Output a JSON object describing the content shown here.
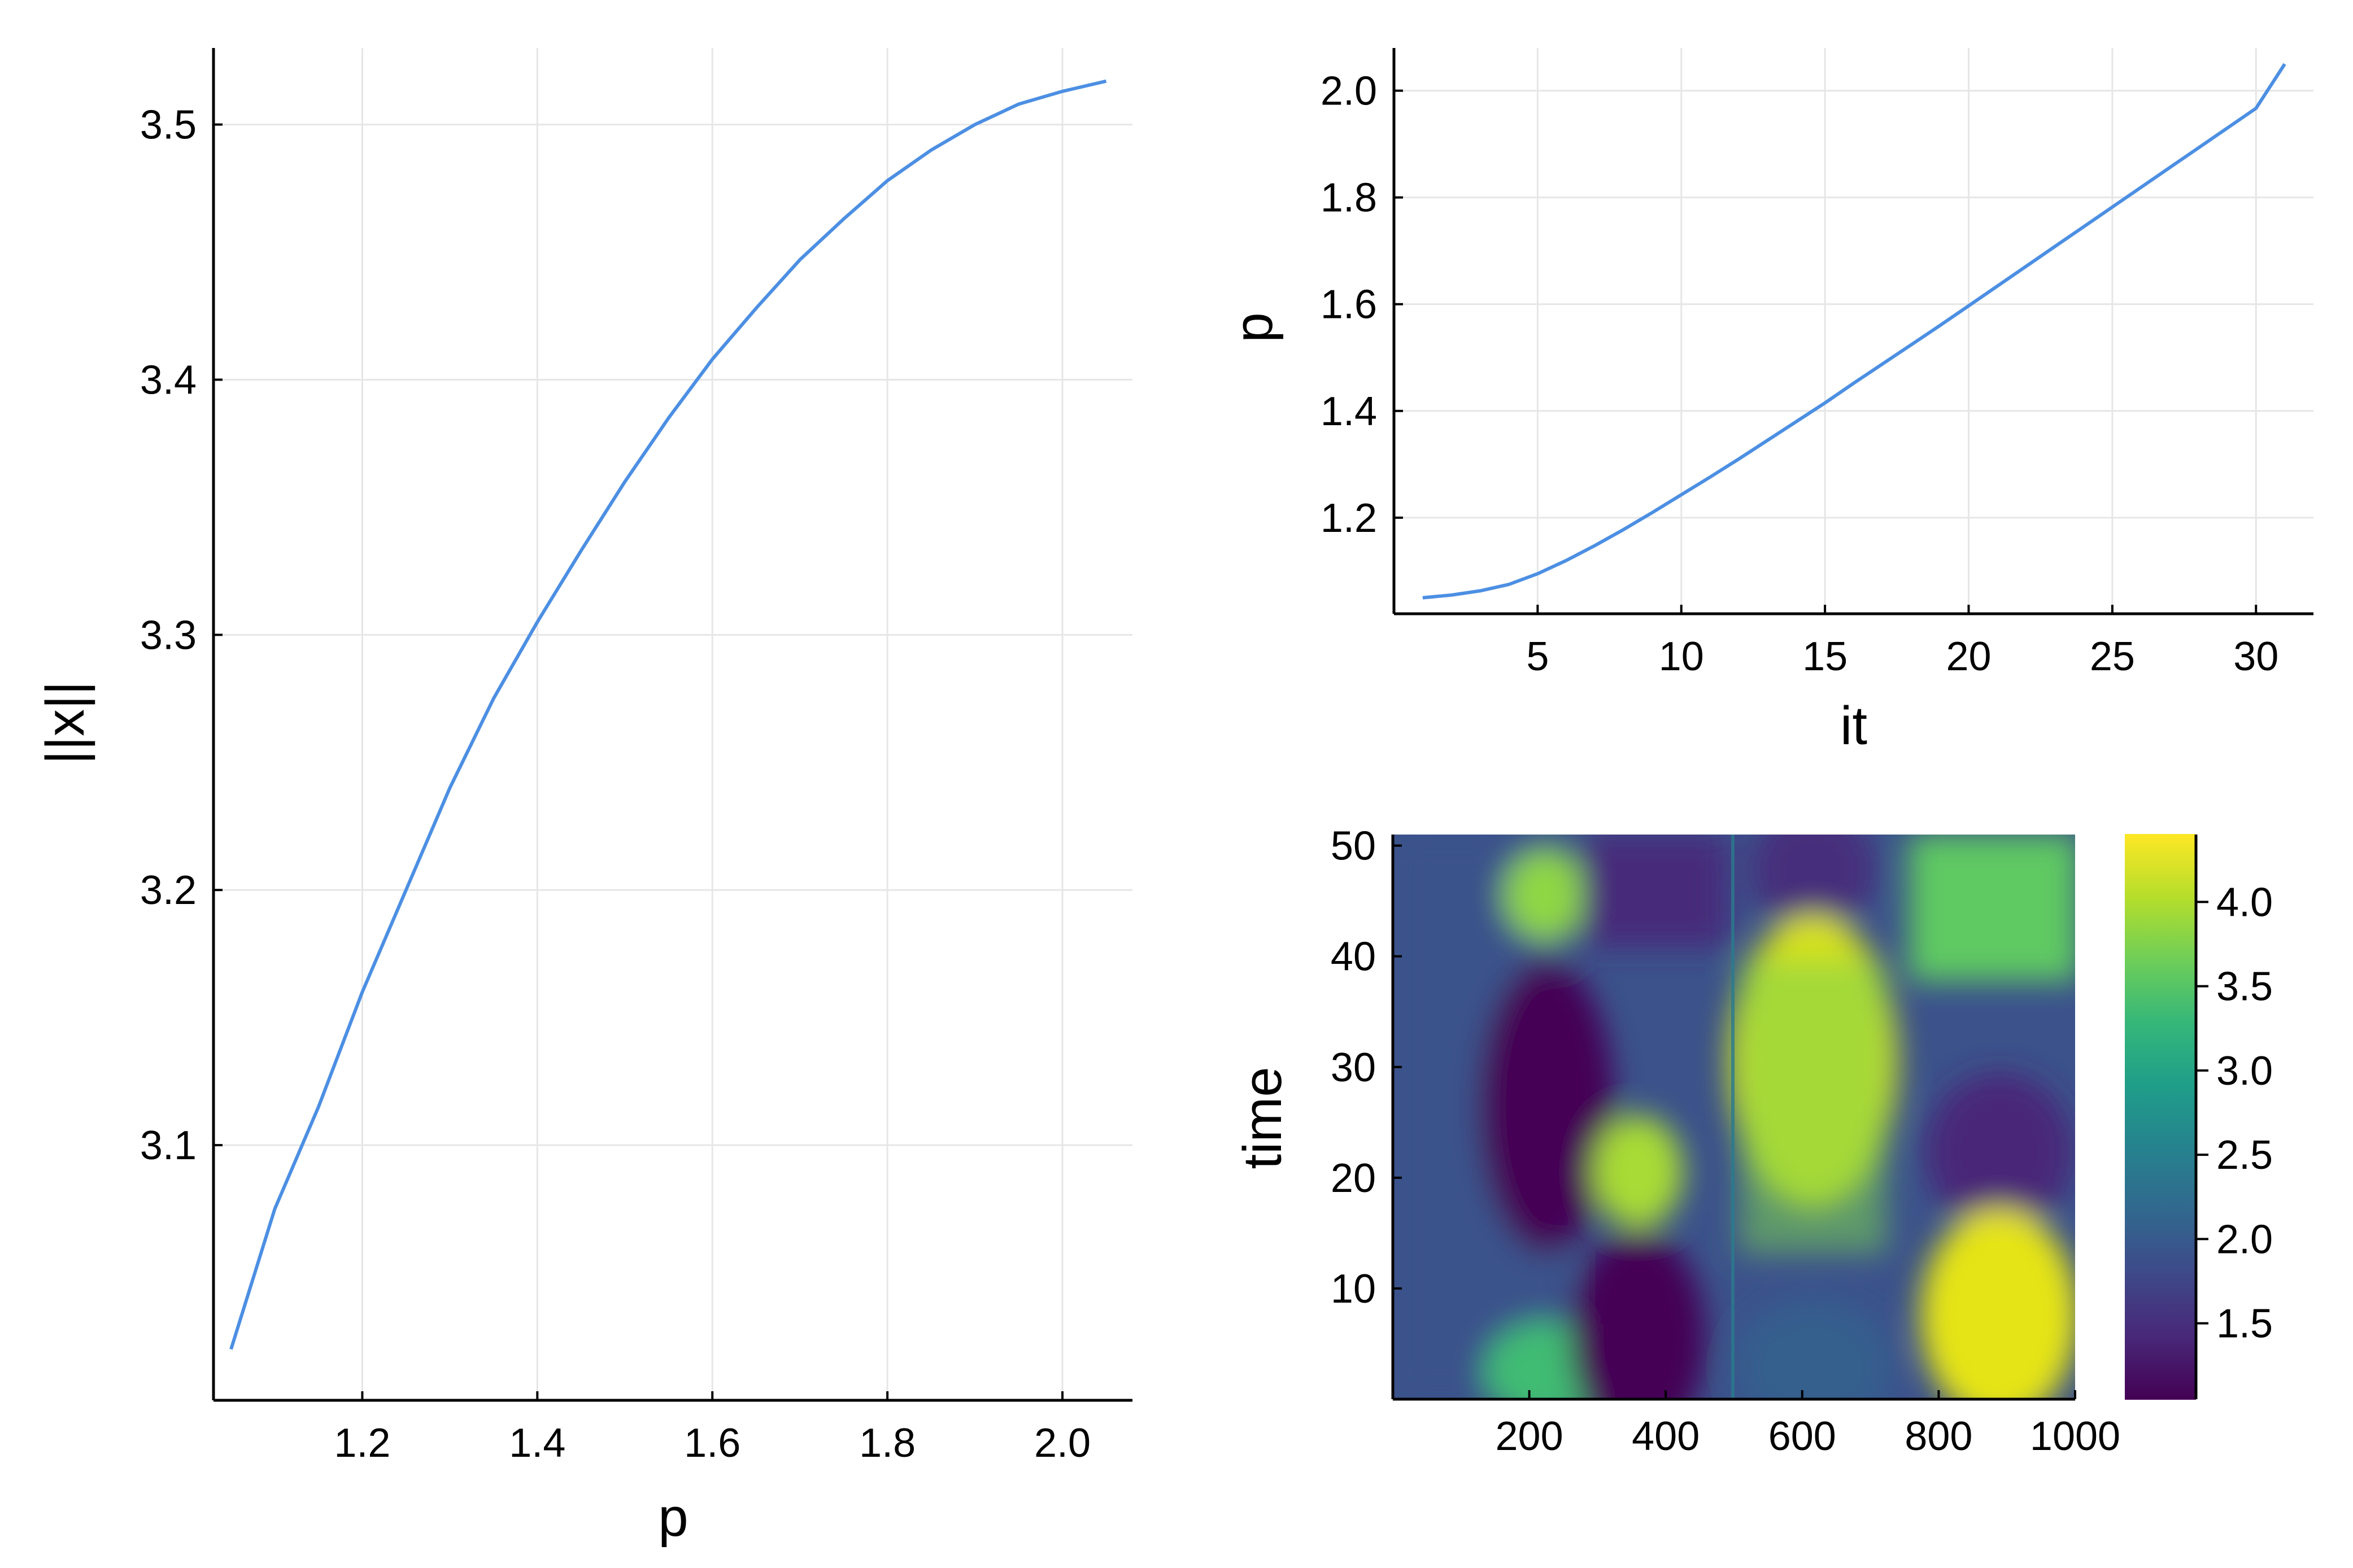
{
  "chart_data": [
    {
      "id": "norm-vs-p",
      "type": "line",
      "title": "",
      "xlabel": "p",
      "ylabel": "||x||",
      "xlim": [
        1.03,
        2.08
      ],
      "ylim": [
        3.0,
        3.53
      ],
      "xticks": [
        1.2,
        1.4,
        1.6,
        1.8,
        2.0
      ],
      "xtick_labels": [
        "1.2",
        "1.4",
        "1.6",
        "1.8",
        "2.0"
      ],
      "yticks": [
        3.1,
        3.2,
        3.3,
        3.4,
        3.5
      ],
      "ytick_labels": [
        "3.1",
        "3.2",
        "3.3",
        "3.4",
        "3.5"
      ],
      "grid": true,
      "legend": "none",
      "color": "#4c8fe3",
      "x": [
        1.05,
        1.1,
        1.15,
        1.2,
        1.25,
        1.3,
        1.35,
        1.4,
        1.45,
        1.5,
        1.55,
        1.6,
        1.65,
        1.7,
        1.75,
        1.8,
        1.85,
        1.9,
        1.95,
        2.0,
        2.05
      ],
      "y": [
        3.02,
        3.075,
        3.115,
        3.16,
        3.2,
        3.24,
        3.275,
        3.305,
        3.333,
        3.36,
        3.385,
        3.408,
        3.428,
        3.447,
        3.463,
        3.478,
        3.49,
        3.5,
        3.508,
        3.513,
        3.517
      ]
    },
    {
      "id": "p-vs-it",
      "type": "line",
      "title": "",
      "xlabel": "it",
      "ylabel": "p",
      "xlim": [
        0,
        32
      ],
      "ylim": [
        1.02,
        2.08
      ],
      "xticks": [
        5,
        10,
        15,
        20,
        25,
        30
      ],
      "xtick_labels": [
        "5",
        "10",
        "15",
        "20",
        "25",
        "30"
      ],
      "yticks": [
        1.2,
        1.4,
        1.6,
        1.8,
        2.0
      ],
      "ytick_labels": [
        "1.2",
        "1.4",
        "1.6",
        "1.8",
        "2.0"
      ],
      "grid": true,
      "legend": "none",
      "color": "#4c8fe3",
      "x": [
        1,
        2,
        3,
        4,
        5,
        6,
        7,
        8,
        9,
        10,
        11,
        12,
        13,
        14,
        15,
        16,
        17,
        18,
        19,
        20,
        21,
        22,
        23,
        24,
        25,
        26,
        27,
        28,
        29,
        30,
        31
      ],
      "y": [
        1.05,
        1.055,
        1.063,
        1.075,
        1.095,
        1.12,
        1.148,
        1.178,
        1.21,
        1.243,
        1.276,
        1.31,
        1.345,
        1.38,
        1.415,
        1.452,
        1.488,
        1.524,
        1.56,
        1.597,
        1.634,
        1.671,
        1.708,
        1.745,
        1.782,
        1.819,
        1.856,
        1.893,
        1.93,
        1.967,
        2.05
      ]
    },
    {
      "id": "heatmap-time",
      "type": "heatmap",
      "title": "",
      "xlabel": "",
      "ylabel": "time",
      "xlim": [
        0,
        1000
      ],
      "ylim": [
        0,
        51
      ],
      "xticks": [
        200,
        400,
        600,
        800,
        1000
      ],
      "xtick_labels": [
        "200",
        "400",
        "600",
        "800",
        "1000"
      ],
      "yticks": [
        10,
        20,
        30,
        40,
        50
      ],
      "ytick_labels": [
        "10",
        "20",
        "30",
        "40",
        "50"
      ],
      "grid": false,
      "colormap": "viridis",
      "clim": [
        1.05,
        4.4
      ],
      "colorbar_ticks": [
        1.5,
        2.0,
        2.5,
        3.0,
        3.5,
        4.0
      ],
      "colorbar_tick_labels": [
        "1.5",
        "2.0",
        "2.5",
        "3.0",
        "3.5",
        "4.0"
      ],
      "colorbar_position": "right",
      "colors_viridis": [
        "#440154",
        "#482878",
        "#3e4989",
        "#31688e",
        "#26828e",
        "#1f9e89",
        "#35b779",
        "#6ece58",
        "#b5de2b",
        "#fde725"
      ]
    }
  ]
}
